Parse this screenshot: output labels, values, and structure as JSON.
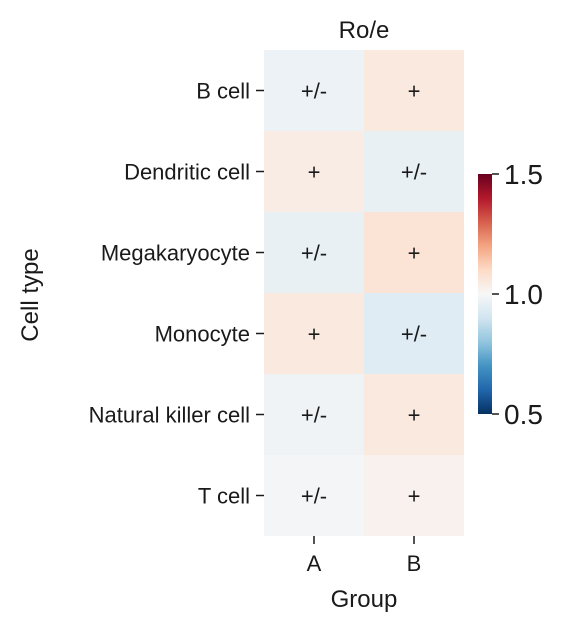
{
  "chart_data": {
    "type": "heatmap",
    "title": "Ro/e",
    "xlabel": "Group",
    "ylabel": "Cell type",
    "x_categories": [
      "A",
      "B"
    ],
    "y_categories": [
      "B cell",
      "Dendritic cell",
      "Megakaryocyte",
      "Monocyte",
      "Natural killer cell",
      "T cell"
    ],
    "values": [
      [
        0.97,
        1.05
      ],
      [
        1.04,
        0.96
      ],
      [
        0.96,
        1.07
      ],
      [
        1.05,
        0.94
      ],
      [
        0.98,
        1.05
      ],
      [
        0.99,
        1.02
      ]
    ],
    "annotations": [
      [
        "+/-",
        "+"
      ],
      [
        "+",
        "+/-"
      ],
      [
        "+/-",
        "+"
      ],
      [
        "+",
        "+/-"
      ],
      [
        "+/-",
        "+"
      ],
      [
        "+/-",
        "+"
      ]
    ],
    "colorbar": {
      "colormap": "RdBu_r",
      "range": [
        0.5,
        1.5
      ],
      "ticks": [
        0.5,
        1.0,
        1.5
      ],
      "tick_labels": [
        "0.5",
        "1.0",
        "1.5"
      ],
      "placement": "right"
    },
    "grid": false
  }
}
